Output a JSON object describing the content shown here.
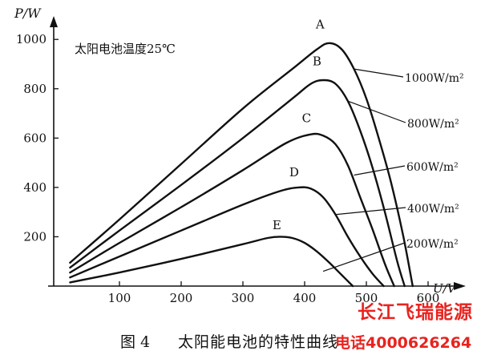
{
  "chart_data": {
    "type": "line",
    "xlabel": "U/V",
    "ylabel": "P/W",
    "annotation": "太阳电池温度25℃",
    "xlim": [
      0,
      700
    ],
    "ylim": [
      0,
      1050
    ],
    "x_ticks": [
      100,
      200,
      300,
      400,
      500,
      600
    ],
    "y_ticks": [
      200,
      400,
      600,
      800,
      1000
    ],
    "grid": false,
    "series": [
      {
        "name": "A",
        "irradiance": "1000W/m²",
        "x": [
          20,
          100,
          200,
          300,
          380,
          420,
          440,
          460,
          480,
          500,
          520,
          540,
          560,
          575
        ],
        "y": [
          95,
          270,
          495,
          720,
          880,
          960,
          985,
          960,
          880,
          760,
          600,
          420,
          200,
          0
        ]
      },
      {
        "name": "B",
        "irradiance": "800W/m²",
        "x": [
          20,
          100,
          200,
          300,
          380,
          410,
          430,
          450,
          470,
          490,
          510,
          530,
          550,
          562
        ],
        "y": [
          75,
          225,
          410,
          600,
          760,
          820,
          835,
          820,
          750,
          630,
          480,
          300,
          100,
          0
        ]
      },
      {
        "name": "C",
        "irradiance": "600W/m²",
        "x": [
          20,
          100,
          200,
          300,
          370,
          410,
          430,
          450,
          470,
          490,
          510,
          530,
          545
        ],
        "y": [
          55,
          175,
          320,
          470,
          580,
          615,
          610,
          575,
          490,
          360,
          230,
          90,
          0
        ]
      },
      {
        "name": "D",
        "irradiance": "400W/m²",
        "x": [
          20,
          100,
          200,
          300,
          360,
          390,
          410,
          430,
          450,
          470,
          490,
          510,
          528
        ],
        "y": [
          35,
          120,
          225,
          330,
          385,
          400,
          395,
          360,
          290,
          200,
          120,
          50,
          0
        ]
      },
      {
        "name": "E",
        "irradiance": "200W/m²",
        "x": [
          20,
          100,
          200,
          300,
          340,
          360,
          380,
          400,
          420,
          440,
          460,
          478
        ],
        "y": [
          15,
          55,
          110,
          170,
          195,
          200,
          195,
          175,
          140,
          95,
          45,
          0
        ]
      }
    ]
  },
  "caption": {
    "figure_label": "图 4",
    "text": "太阳能电池的特性曲线"
  },
  "watermark": {
    "brand": "长江飞瑞能源",
    "phone": "电话4000626264"
  }
}
